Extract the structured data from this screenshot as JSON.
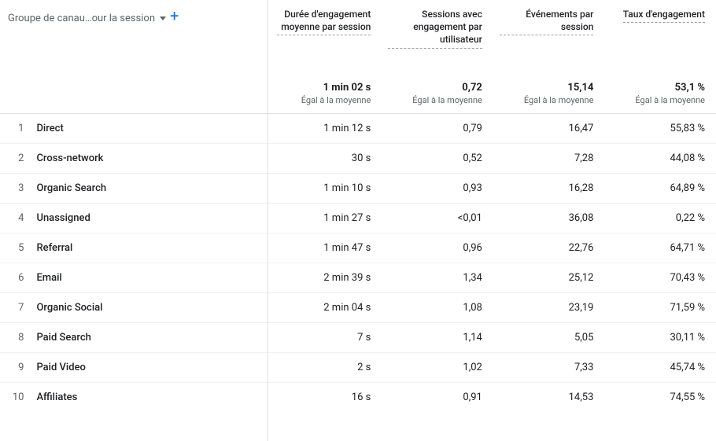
{
  "dimension_picker": {
    "label": "Groupe de canau…our la session"
  },
  "columns": [
    {
      "header": "Durée d'engagement moyenne par session",
      "total": "1 min 02 s",
      "note": "Égal à la moyenne"
    },
    {
      "header": "Sessions avec engagement par utilisateur",
      "total": "0,72",
      "note": "Égal à la moyenne"
    },
    {
      "header": "Événements par session",
      "total": "15,14",
      "note": "Égal à la moyenne"
    },
    {
      "header": "Taux d'engagement",
      "total": "53,1 %",
      "note": "Égal à la moyenne"
    }
  ],
  "rows": [
    {
      "idx": "1",
      "dim": "Direct",
      "v": [
        "1 min 12 s",
        "0,79",
        "16,47",
        "55,83 %"
      ]
    },
    {
      "idx": "2",
      "dim": "Cross-network",
      "v": [
        "30 s",
        "0,52",
        "7,28",
        "44,08 %"
      ]
    },
    {
      "idx": "3",
      "dim": "Organic Search",
      "v": [
        "1 min 10 s",
        "0,93",
        "16,28",
        "64,89 %"
      ]
    },
    {
      "idx": "4",
      "dim": "Unassigned",
      "v": [
        "1 min 27 s",
        "<0,01",
        "36,08",
        "0,22 %"
      ]
    },
    {
      "idx": "5",
      "dim": "Referral",
      "v": [
        "1 min 47 s",
        "0,96",
        "22,76",
        "64,71 %"
      ]
    },
    {
      "idx": "6",
      "dim": "Email",
      "v": [
        "2 min 39 s",
        "1,34",
        "25,12",
        "70,43 %"
      ]
    },
    {
      "idx": "7",
      "dim": "Organic Social",
      "v": [
        "2 min 04 s",
        "1,08",
        "23,19",
        "71,59 %"
      ]
    },
    {
      "idx": "8",
      "dim": "Paid Search",
      "v": [
        "7 s",
        "1,14",
        "5,05",
        "30,11 %"
      ]
    },
    {
      "idx": "9",
      "dim": "Paid Video",
      "v": [
        "2 s",
        "1,02",
        "7,33",
        "45,74 %"
      ]
    },
    {
      "idx": "10",
      "dim": "Affiliates",
      "v": [
        "16 s",
        "0,91",
        "14,53",
        "74,55 %"
      ]
    }
  ]
}
